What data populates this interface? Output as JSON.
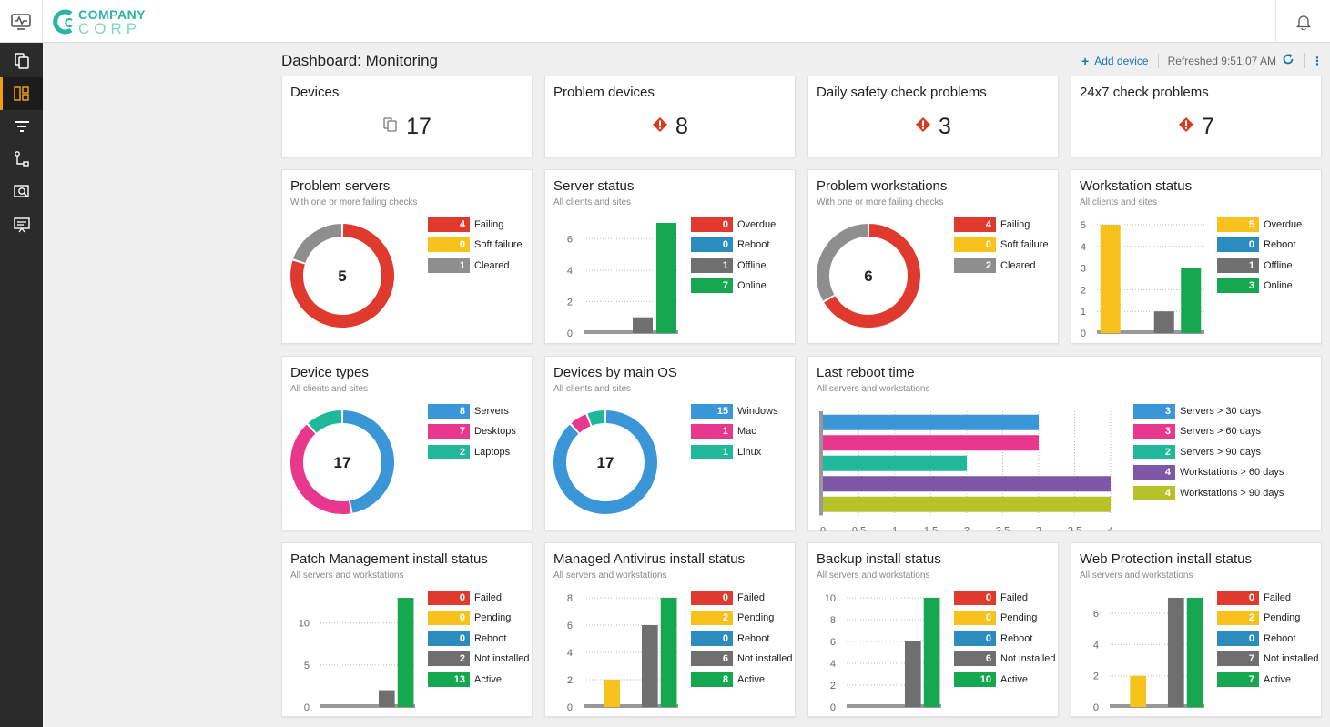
{
  "brand": {
    "line1": "COMPANY",
    "line2": "CORP"
  },
  "header": {
    "title": "Dashboard: Monitoring",
    "add_device": "Add device",
    "refreshed": "Refreshed 9:51:07 AM"
  },
  "colors": {
    "failing": "#e03a2e",
    "soft": "#f7c21b",
    "grey": "#8e8e8e",
    "blue": "#2b8cbe",
    "green": "#16a851",
    "teal": "#1fb89a",
    "pink": "#e8388e",
    "sky": "#3a96d6",
    "purple": "#7e57a6",
    "olive": "#b6c22a",
    "darkgrey": "#6f6f6f"
  },
  "stats": {
    "devices": {
      "title": "Devices",
      "value": "17",
      "icon": "device-icon"
    },
    "problem_devices": {
      "title": "Problem devices",
      "value": "8",
      "icon": "warning-icon"
    },
    "daily": {
      "title": "Daily safety check problems",
      "value": "3",
      "icon": "warning-icon"
    },
    "check24": {
      "title": "24x7 check problems",
      "value": "7",
      "icon": "warning-icon"
    }
  },
  "cards": {
    "problem_servers": {
      "title": "Problem servers",
      "subtitle": "With one or more failing checks",
      "center": "5",
      "legend": [
        {
          "value": "4",
          "label": "Failing"
        },
        {
          "value": "0",
          "label": "Soft failure"
        },
        {
          "value": "1",
          "label": "Cleared"
        }
      ]
    },
    "server_status": {
      "title": "Server status",
      "subtitle": "All clients and sites",
      "legend": [
        {
          "value": "0",
          "label": "Overdue"
        },
        {
          "value": "0",
          "label": "Reboot"
        },
        {
          "value": "1",
          "label": "Offline"
        },
        {
          "value": "7",
          "label": "Online"
        }
      ]
    },
    "problem_workstations": {
      "title": "Problem workstations",
      "subtitle": "With one or more failing checks",
      "center": "6",
      "legend": [
        {
          "value": "4",
          "label": "Failing"
        },
        {
          "value": "0",
          "label": "Soft failure"
        },
        {
          "value": "2",
          "label": "Cleared"
        }
      ]
    },
    "workstation_status": {
      "title": "Workstation status",
      "subtitle": "All clients and sites",
      "legend": [
        {
          "value": "5",
          "label": "Overdue"
        },
        {
          "value": "0",
          "label": "Reboot"
        },
        {
          "value": "1",
          "label": "Offline"
        },
        {
          "value": "3",
          "label": "Online"
        }
      ]
    },
    "device_types": {
      "title": "Device types",
      "subtitle": "All clients and sites",
      "center": "17",
      "legend": [
        {
          "value": "8",
          "label": "Servers"
        },
        {
          "value": "7",
          "label": "Desktops"
        },
        {
          "value": "2",
          "label": "Laptops"
        }
      ]
    },
    "devices_os": {
      "title": "Devices by main OS",
      "subtitle": "All clients and sites",
      "center": "17",
      "legend": [
        {
          "value": "15",
          "label": "Windows"
        },
        {
          "value": "1",
          "label": "Mac"
        },
        {
          "value": "1",
          "label": "Linux"
        }
      ]
    },
    "last_reboot": {
      "title": "Last reboot time",
      "subtitle": "All servers and workstations",
      "legend": [
        {
          "value": "3",
          "label": "Servers > 30 days"
        },
        {
          "value": "3",
          "label": "Servers > 60 days"
        },
        {
          "value": "2",
          "label": "Servers > 90 days"
        },
        {
          "value": "4",
          "label": "Workstations > 60 days"
        },
        {
          "value": "4",
          "label": "Workstations > 90 days"
        }
      ]
    },
    "patch": {
      "title": "Patch Management install status",
      "subtitle": "All servers and workstations",
      "legend": [
        {
          "value": "0",
          "label": "Failed"
        },
        {
          "value": "0",
          "label": "Pending"
        },
        {
          "value": "0",
          "label": "Reboot"
        },
        {
          "value": "2",
          "label": "Not installed"
        },
        {
          "value": "13",
          "label": "Active"
        }
      ]
    },
    "antivirus": {
      "title": "Managed Antivirus install status",
      "subtitle": "All servers and workstations",
      "legend": [
        {
          "value": "0",
          "label": "Failed"
        },
        {
          "value": "2",
          "label": "Pending"
        },
        {
          "value": "0",
          "label": "Reboot"
        },
        {
          "value": "6",
          "label": "Not installed"
        },
        {
          "value": "8",
          "label": "Active"
        }
      ]
    },
    "backup": {
      "title": "Backup install status",
      "subtitle": "All servers and workstations",
      "legend": [
        {
          "value": "0",
          "label": "Failed"
        },
        {
          "value": "0",
          "label": "Pending"
        },
        {
          "value": "0",
          "label": "Reboot"
        },
        {
          "value": "6",
          "label": "Not installed"
        },
        {
          "value": "10",
          "label": "Active"
        }
      ]
    },
    "webprot": {
      "title": "Web Protection install status",
      "subtitle": "All servers and workstations",
      "legend": [
        {
          "value": "0",
          "label": "Failed"
        },
        {
          "value": "2",
          "label": "Pending"
        },
        {
          "value": "0",
          "label": "Reboot"
        },
        {
          "value": "7",
          "label": "Not installed"
        },
        {
          "value": "7",
          "label": "Active"
        }
      ]
    }
  },
  "chart_data": [
    {
      "type": "pie",
      "title": "Problem servers",
      "categories": [
        "Failing",
        "Soft failure",
        "Cleared"
      ],
      "values": [
        4,
        0,
        1
      ],
      "center": "5"
    },
    {
      "type": "bar",
      "title": "Server status",
      "categories": [
        "Overdue",
        "Reboot",
        "Offline",
        "Online"
      ],
      "values": [
        0,
        0,
        1,
        7
      ],
      "ylim": [
        0,
        7
      ],
      "yticks": [
        "0",
        "2",
        "4",
        "6"
      ]
    },
    {
      "type": "pie",
      "title": "Problem workstations",
      "categories": [
        "Failing",
        "Soft failure",
        "Cleared"
      ],
      "values": [
        4,
        0,
        2
      ],
      "center": "6"
    },
    {
      "type": "bar",
      "title": "Workstation status",
      "categories": [
        "Overdue",
        "Reboot",
        "Offline",
        "Online"
      ],
      "values": [
        5,
        0,
        1,
        3
      ],
      "ylim": [
        0,
        5
      ],
      "yticks": [
        "0",
        "1",
        "2",
        "3",
        "4",
        "5"
      ]
    },
    {
      "type": "pie",
      "title": "Device types",
      "categories": [
        "Servers",
        "Desktops",
        "Laptops"
      ],
      "values": [
        8,
        7,
        2
      ],
      "center": "17"
    },
    {
      "type": "pie",
      "title": "Devices by main OS",
      "categories": [
        "Windows",
        "Mac",
        "Linux"
      ],
      "values": [
        15,
        1,
        1
      ],
      "center": "17"
    },
    {
      "type": "bar",
      "orientation": "horizontal",
      "title": "Last reboot time",
      "categories": [
        "Servers > 30 days",
        "Servers > 60 days",
        "Servers > 90 days",
        "Workstations > 60 days",
        "Workstations > 90 days"
      ],
      "values": [
        3,
        3,
        2,
        4,
        4
      ],
      "xlim": [
        0,
        4
      ],
      "xticks": [
        "0",
        "0.5",
        "1",
        "1.5",
        "2",
        "2.5",
        "3",
        "3.5",
        "4"
      ]
    },
    {
      "type": "bar",
      "title": "Patch Management install status",
      "categories": [
        "Failed",
        "Pending",
        "Reboot",
        "Not installed",
        "Active"
      ],
      "values": [
        0,
        0,
        0,
        2,
        13
      ],
      "ylim": [
        0,
        13
      ],
      "yticks": [
        "0",
        "5",
        "10"
      ]
    },
    {
      "type": "bar",
      "title": "Managed Antivirus install status",
      "categories": [
        "Failed",
        "Pending",
        "Reboot",
        "Not installed",
        "Active"
      ],
      "values": [
        0,
        2,
        0,
        6,
        8
      ],
      "ylim": [
        0,
        8
      ],
      "yticks": [
        "0",
        "2",
        "4",
        "6",
        "8"
      ]
    },
    {
      "type": "bar",
      "title": "Backup install status",
      "categories": [
        "Failed",
        "Pending",
        "Reboot",
        "Not installed",
        "Active"
      ],
      "values": [
        0,
        0,
        0,
        6,
        10
      ],
      "ylim": [
        0,
        10
      ],
      "yticks": [
        "0",
        "2",
        "4",
        "6",
        "8",
        "10"
      ]
    },
    {
      "type": "bar",
      "title": "Web Protection install status",
      "categories": [
        "Failed",
        "Pending",
        "Reboot",
        "Not installed",
        "Active"
      ],
      "values": [
        0,
        2,
        0,
        7,
        7
      ],
      "ylim": [
        0,
        7
      ],
      "yticks": [
        "0",
        "2",
        "4",
        "6"
      ]
    }
  ]
}
